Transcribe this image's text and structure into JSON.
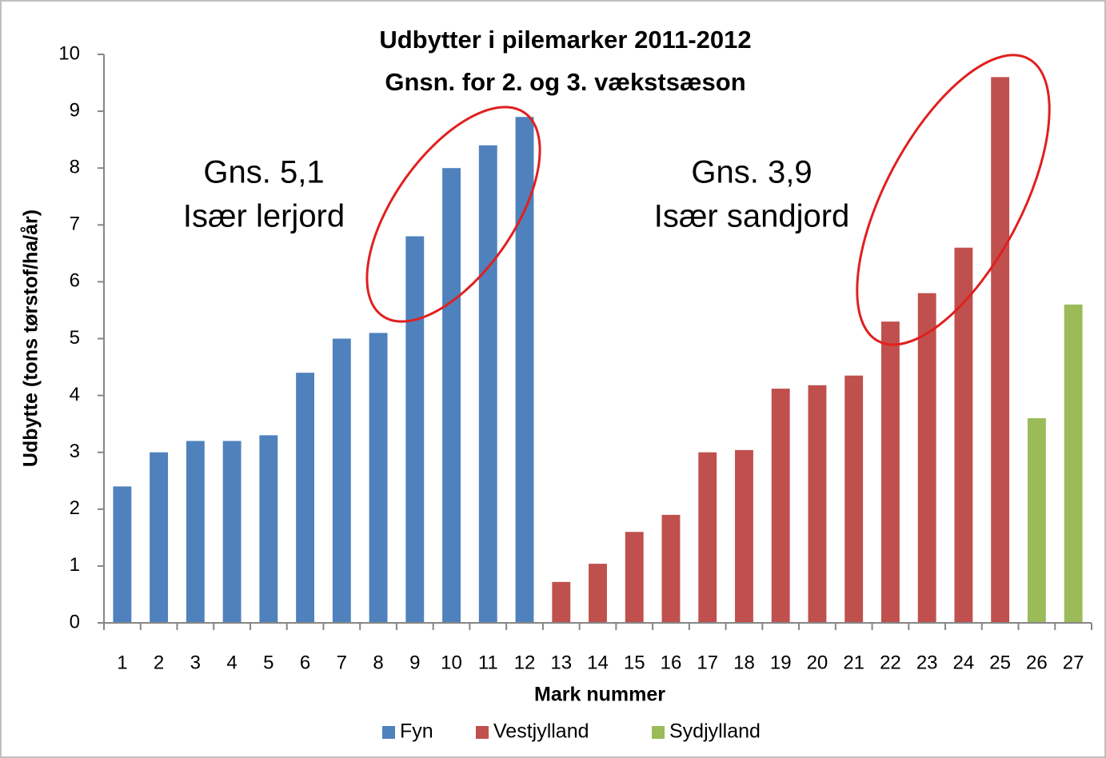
{
  "chart_data": {
    "type": "bar",
    "title": [
      "Udbytter i pilemarker 2011-2012",
      "Gnsn. for 2. og 3. vækstsæson"
    ],
    "y_label": "Udbytte (tons tørstof/ha/år)",
    "x_label": "Mark nummer",
    "annotations": [
      "Gns. 5,1",
      "Især lerjord",
      "Gns. 3,9",
      "Især sandjord"
    ],
    "categories": [
      "1",
      "2",
      "3",
      "4",
      "5",
      "6",
      "7",
      "8",
      "9",
      "10",
      "11",
      "12",
      "13",
      "14",
      "15",
      "16",
      "17",
      "18",
      "19",
      "20",
      "21",
      "22",
      "23",
      "24",
      "25",
      "26",
      "27"
    ],
    "series": [
      {
        "name": "Fyn",
        "color": "#4f81bd",
        "values": [
          2.4,
          3.0,
          3.2,
          3.2,
          3.3,
          4.4,
          5.0,
          5.1,
          6.8,
          8.0,
          8.4,
          8.9,
          null,
          null,
          null,
          null,
          null,
          null,
          null,
          null,
          null,
          null,
          null,
          null,
          null,
          null,
          null
        ]
      },
      {
        "name": "Vestjylland",
        "color": "#c0504d",
        "values": [
          null,
          null,
          null,
          null,
          null,
          null,
          null,
          null,
          null,
          null,
          null,
          null,
          0.72,
          1.04,
          1.6,
          1.9,
          3.0,
          3.04,
          4.12,
          4.18,
          4.35,
          5.3,
          5.8,
          6.6,
          9.6,
          null,
          null
        ]
      },
      {
        "name": "Sydjylland",
        "color": "#9bbb59",
        "values": [
          null,
          null,
          null,
          null,
          null,
          null,
          null,
          null,
          null,
          null,
          null,
          null,
          null,
          null,
          null,
          null,
          null,
          null,
          null,
          null,
          null,
          null,
          null,
          null,
          null,
          3.6,
          5.6
        ]
      }
    ],
    "ylim": [
      0,
      10
    ],
    "yticks": [
      0,
      1,
      2,
      3,
      4,
      5,
      6,
      7,
      8,
      9,
      10
    ],
    "grid": false,
    "legend": "bottom"
  }
}
